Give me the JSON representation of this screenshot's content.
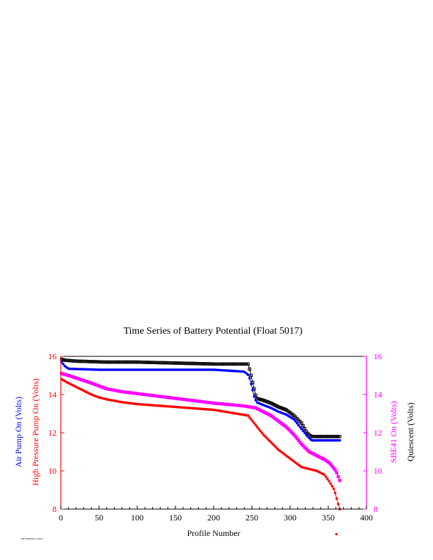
{
  "chart_data": {
    "type": "line",
    "title": "Time Series of Battery Potential (Float 5017)",
    "xlabel": "Profile Number",
    "xlim": [
      0,
      400
    ],
    "x_ticks": [
      "0",
      "50",
      "100",
      "150",
      "200",
      "250",
      "300",
      "350",
      "400"
    ],
    "left_axis": {
      "ylim": [
        8,
        16
      ],
      "ticks": [
        "8",
        "10",
        "12",
        "14",
        "16"
      ],
      "labels": [
        {
          "text": "Air Pump On (Volts)",
          "color": "#0000ff"
        },
        {
          "text": "High Pressure Pump On (Volts)",
          "color": "#ff0000"
        }
      ]
    },
    "right_axis": {
      "ylim": [
        8,
        16
      ],
      "ticks": [
        "8",
        "10",
        "12",
        "14",
        "16"
      ],
      "labels": [
        {
          "text": "SBE41 On (Volts)",
          "color": "#ff00ff"
        },
        {
          "text": "Quiescent (Volts)",
          "color": "#000000"
        }
      ]
    },
    "series": [
      {
        "color": "#000000",
        "axis": "right",
        "points": [
          [
            1,
            15.85
          ],
          [
            5,
            15.8
          ],
          [
            20,
            15.75
          ],
          [
            60,
            15.7
          ],
          [
            100,
            15.7
          ],
          [
            150,
            15.65
          ],
          [
            200,
            15.6
          ],
          [
            245,
            15.6
          ],
          [
            248,
            15.2
          ],
          [
            250,
            14.8
          ],
          [
            253,
            14.3
          ],
          [
            256,
            13.8
          ],
          [
            265,
            13.7
          ],
          [
            275,
            13.55
          ],
          [
            285,
            13.35
          ],
          [
            295,
            13.2
          ],
          [
            305,
            12.9
          ],
          [
            315,
            12.5
          ],
          [
            322,
            12.0
          ],
          [
            328,
            11.8
          ],
          [
            345,
            11.8
          ],
          [
            365,
            11.8
          ]
        ]
      },
      {
        "color": "#0000ff",
        "axis": "left",
        "points": [
          [
            1,
            15.7
          ],
          [
            5,
            15.5
          ],
          [
            10,
            15.35
          ],
          [
            50,
            15.3
          ],
          [
            100,
            15.3
          ],
          [
            150,
            15.3
          ],
          [
            200,
            15.3
          ],
          [
            240,
            15.2
          ],
          [
            246,
            15.0
          ],
          [
            250,
            14.4
          ],
          [
            253,
            13.9
          ],
          [
            256,
            13.6
          ],
          [
            265,
            13.45
          ],
          [
            275,
            13.3
          ],
          [
            285,
            13.1
          ],
          [
            295,
            12.95
          ],
          [
            305,
            12.7
          ],
          [
            315,
            12.2
          ],
          [
            322,
            11.85
          ],
          [
            328,
            11.6
          ],
          [
            345,
            11.6
          ],
          [
            365,
            11.6
          ]
        ]
      },
      {
        "color": "#ff00ff",
        "axis": "right",
        "points": [
          [
            1,
            15.1
          ],
          [
            10,
            15.0
          ],
          [
            25,
            14.8
          ],
          [
            40,
            14.6
          ],
          [
            60,
            14.3
          ],
          [
            80,
            14.15
          ],
          [
            100,
            14.05
          ],
          [
            130,
            13.9
          ],
          [
            160,
            13.75
          ],
          [
            200,
            13.55
          ],
          [
            240,
            13.4
          ],
          [
            255,
            13.3
          ],
          [
            265,
            13.1
          ],
          [
            275,
            12.9
          ],
          [
            285,
            12.6
          ],
          [
            295,
            12.3
          ],
          [
            305,
            11.9
          ],
          [
            315,
            11.4
          ],
          [
            325,
            11.0
          ],
          [
            335,
            10.8
          ],
          [
            345,
            10.6
          ],
          [
            352,
            10.4
          ],
          [
            360,
            10.0
          ],
          [
            365,
            9.5
          ]
        ]
      },
      {
        "color": "#ff0000",
        "axis": "left",
        "points": [
          [
            1,
            14.8
          ],
          [
            10,
            14.6
          ],
          [
            20,
            14.4
          ],
          [
            30,
            14.2
          ],
          [
            40,
            14.0
          ],
          [
            50,
            13.85
          ],
          [
            60,
            13.75
          ],
          [
            80,
            13.6
          ],
          [
            100,
            13.5
          ],
          [
            150,
            13.35
          ],
          [
            200,
            13.2
          ],
          [
            230,
            13.0
          ],
          [
            245,
            12.9
          ],
          [
            255,
            12.4
          ],
          [
            265,
            11.9
          ],
          [
            275,
            11.5
          ],
          [
            285,
            11.1
          ],
          [
            295,
            10.8
          ],
          [
            305,
            10.5
          ],
          [
            315,
            10.2
          ],
          [
            325,
            10.1
          ],
          [
            335,
            10.0
          ],
          [
            345,
            9.8
          ],
          [
            352,
            9.4
          ],
          [
            358,
            9.0
          ],
          [
            362,
            8.4
          ],
          [
            365,
            8.0
          ]
        ]
      }
    ]
  },
  "footer": {
    "stamp": "FMUTIMESEA 1234567"
  }
}
